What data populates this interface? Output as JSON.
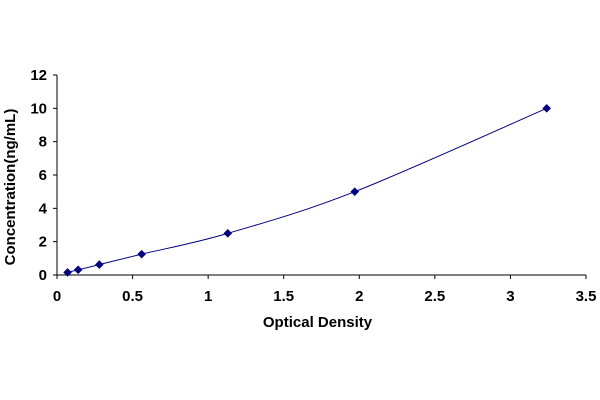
{
  "chart_data": {
    "type": "scatter",
    "title": "",
    "xlabel": "Optical Density",
    "ylabel": "Concentration(ng/mL)",
    "xlim": [
      0,
      3.5
    ],
    "ylim": [
      0,
      12
    ],
    "x_ticks": [
      0,
      0.5,
      1,
      1.5,
      2,
      2.5,
      3,
      3.5
    ],
    "x_tick_labels": [
      "0",
      "0.5",
      "1",
      "1.5",
      "2",
      "2.5",
      "3",
      "3.5"
    ],
    "y_ticks": [
      0,
      2,
      4,
      6,
      8,
      10,
      12
    ],
    "y_tick_labels": [
      "0",
      "2",
      "4",
      "6",
      "8",
      "10",
      "12"
    ],
    "grid": false,
    "legend": "none",
    "smooth_line": true,
    "marker": "diamond",
    "series": [
      {
        "color": "#000080",
        "x": [
          0.07,
          0.14,
          0.28,
          0.56,
          1.13,
          1.97,
          3.24
        ],
        "y": [
          0.156,
          0.312,
          0.625,
          1.25,
          2.5,
          5,
          10
        ]
      }
    ]
  }
}
